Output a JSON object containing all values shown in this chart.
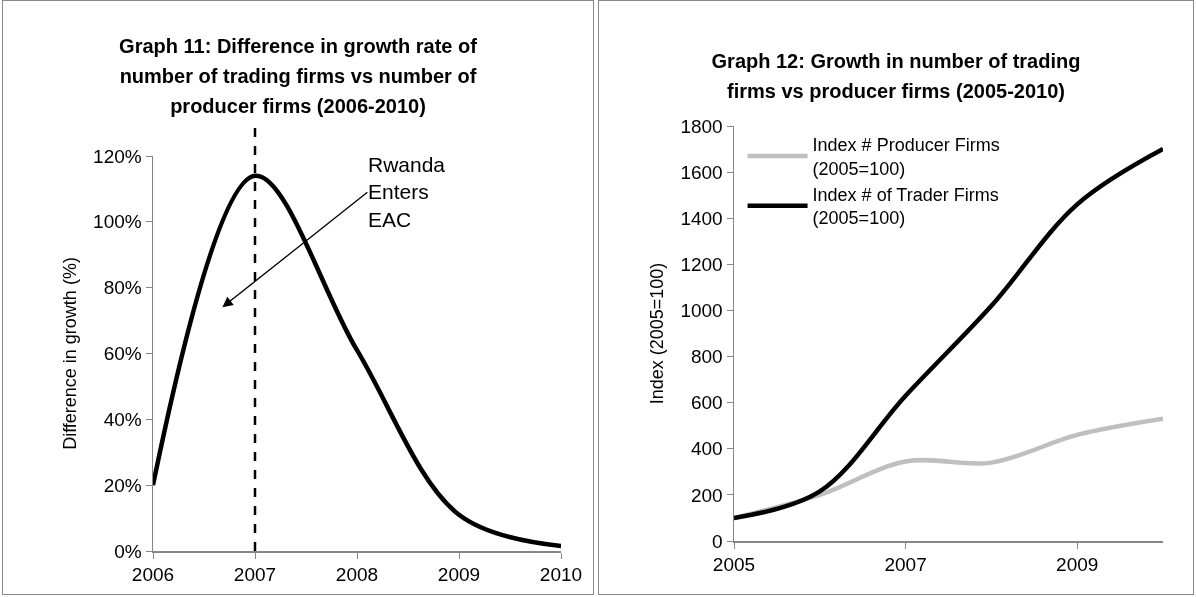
{
  "chart_data": [
    {
      "type": "line",
      "title": "Graph 11: Difference in growth rate of number of trading firms vs number of producer firms (2006-2010)",
      "ylabel": "Difference in growth (%)",
      "x": [
        2006,
        2007,
        2008,
        2009,
        2010
      ],
      "series": [
        {
          "color": "#000000",
          "values": [
            20,
            114,
            61,
            11,
            1.5
          ]
        }
      ],
      "xlim": [
        2006,
        2010
      ],
      "xticks": [
        2006,
        2007,
        2008,
        2009,
        2010
      ],
      "ylim": [
        0,
        120
      ],
      "yticks": [
        {
          "value": 0,
          "label": "0%"
        },
        {
          "value": 20,
          "label": "20%"
        },
        {
          "value": 40,
          "label": "40%"
        },
        {
          "value": 60,
          "label": "60%"
        },
        {
          "value": 80,
          "label": "80%"
        },
        {
          "value": 100,
          "label": "100%"
        },
        {
          "value": 120,
          "label": "120%"
        }
      ],
      "ref_lines": [
        {
          "axis": "x",
          "value": 2007,
          "color": "#000000",
          "line_style": "dashed"
        }
      ],
      "annotations": [
        "Rwanda Enters EAC"
      ],
      "grid": false,
      "legend": false,
      "marker": "none",
      "line_style": "solid"
    },
    {
      "type": "line",
      "title": "Graph 12: Growth in number of trading firms vs producer firms (2005-2010)",
      "ylabel": "Index (2005=100)",
      "x": [
        2005,
        2006,
        2007,
        2008,
        2009,
        2010
      ],
      "series": [
        {
          "name": "Index # Producer Firms (2005=100)",
          "color": "#bfbfbf",
          "values": [
            100,
            200,
            345,
            340,
            460,
            530
          ]
        },
        {
          "name": "Index # of Trader Firms (2005=100)",
          "color": "#000000",
          "values": [
            100,
            215,
            630,
            1020,
            1460,
            1700
          ]
        }
      ],
      "xlim": [
        2005,
        2010
      ],
      "xticks": [
        2005,
        2007,
        2009
      ],
      "ylim": [
        0,
        1800
      ],
      "yticks": [
        0,
        200,
        400,
        600,
        800,
        1000,
        1200,
        1400,
        1600,
        1800
      ],
      "grid": false,
      "legend": "top left",
      "marker": "none",
      "line_style": "solid"
    }
  ]
}
